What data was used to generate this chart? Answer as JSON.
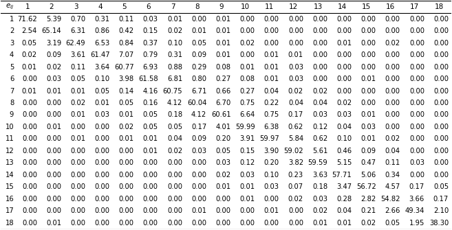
{
  "header_col": [
    "e_{ij}",
    "1",
    "2",
    "3",
    "4",
    "5",
    "6",
    "7",
    "8",
    "9",
    "10",
    "11",
    "12",
    "13",
    "14",
    "15",
    "16",
    "17",
    "18"
  ],
  "rows": [
    [
      "1",
      "71.62",
      "5.39",
      "0.70",
      "0.31",
      "0.11",
      "0.03",
      "0.01",
      "0.00",
      "0.01",
      "0.00",
      "0.00",
      "0.00",
      "0.00",
      "0.00",
      "0.00",
      "0.00",
      "0.00",
      "0.00"
    ],
    [
      "2",
      "2.54",
      "65.14",
      "6.31",
      "0.86",
      "0.42",
      "0.15",
      "0.02",
      "0.01",
      "0.01",
      "0.00",
      "0.00",
      "0.00",
      "0.00",
      "0.00",
      "0.00",
      "0.00",
      "0.00",
      "0.00"
    ],
    [
      "3",
      "0.05",
      "3.19",
      "62.49",
      "6.53",
      "0.84",
      "0.37",
      "0.10",
      "0.05",
      "0.01",
      "0.02",
      "0.00",
      "0.00",
      "0.00",
      "0.01",
      "0.00",
      "0.02",
      "0.00",
      "0.00"
    ],
    [
      "4",
      "0.02",
      "0.09",
      "3.61",
      "61.47",
      "7.07",
      "0.79",
      "0.31",
      "0.09",
      "0.01",
      "0.00",
      "0.01",
      "0.01",
      "0.00",
      "0.00",
      "0.00",
      "0.00",
      "0.00",
      "0.00"
    ],
    [
      "5",
      "0.01",
      "0.02",
      "0.11",
      "3.64",
      "60.77",
      "6.93",
      "0.88",
      "0.29",
      "0.08",
      "0.01",
      "0.01",
      "0.03",
      "0.00",
      "0.00",
      "0.00",
      "0.00",
      "0.00",
      "0.00"
    ],
    [
      "6",
      "0.00",
      "0.03",
      "0.05",
      "0.10",
      "3.98",
      "61.58",
      "6.81",
      "0.80",
      "0.27",
      "0.08",
      "0.01",
      "0.03",
      "0.00",
      "0.00",
      "0.01",
      "0.00",
      "0.00",
      "0.00"
    ],
    [
      "7",
      "0.01",
      "0.01",
      "0.01",
      "0.05",
      "0.14",
      "4.16",
      "60.75",
      "6.71",
      "0.66",
      "0.27",
      "0.04",
      "0.02",
      "0.02",
      "0.00",
      "0.00",
      "0.00",
      "0.00",
      "0.00"
    ],
    [
      "8",
      "0.00",
      "0.00",
      "0.02",
      "0.01",
      "0.05",
      "0.16",
      "4.12",
      "60.04",
      "6.70",
      "0.75",
      "0.22",
      "0.04",
      "0.04",
      "0.02",
      "0.00",
      "0.00",
      "0.00",
      "0.00"
    ],
    [
      "9",
      "0.00",
      "0.00",
      "0.01",
      "0.03",
      "0.01",
      "0.05",
      "0.18",
      "4.12",
      "60.61",
      "6.64",
      "0.75",
      "0.17",
      "0.03",
      "0.03",
      "0.01",
      "0.00",
      "0.00",
      "0.00"
    ],
    [
      "10",
      "0.00",
      "0.01",
      "0.00",
      "0.00",
      "0.02",
      "0.05",
      "0.05",
      "0.17",
      "4.01",
      "59.99",
      "6.38",
      "0.62",
      "0.12",
      "0.04",
      "0.03",
      "0.00",
      "0.00",
      "0.00"
    ],
    [
      "11",
      "0.00",
      "0.00",
      "0.01",
      "0.00",
      "0.01",
      "0.01",
      "0.04",
      "0.09",
      "0.20",
      "3.91",
      "59.97",
      "5.84",
      "0.62",
      "0.10",
      "0.01",
      "0.02",
      "0.00",
      "0.00"
    ],
    [
      "12",
      "0.00",
      "0.00",
      "0.00",
      "0.00",
      "0.00",
      "0.01",
      "0.02",
      "0.03",
      "0.05",
      "0.15",
      "3.90",
      "59.02",
      "5.61",
      "0.46",
      "0.09",
      "0.04",
      "0.00",
      "0.00"
    ],
    [
      "13",
      "0.00",
      "0.00",
      "0.00",
      "0.00",
      "0.00",
      "0.00",
      "0.00",
      "0.00",
      "0.03",
      "0.12",
      "0.20",
      "3.82",
      "59.59",
      "5.15",
      "0.47",
      "0.11",
      "0.03",
      "0.00"
    ],
    [
      "14",
      "0.00",
      "0.00",
      "0.00",
      "0.00",
      "0.00",
      "0.00",
      "0.00",
      "0.00",
      "0.02",
      "0.03",
      "0.10",
      "0.23",
      "3.63",
      "57.71",
      "5.06",
      "0.34",
      "0.00",
      "0.00"
    ],
    [
      "15",
      "0.00",
      "0.00",
      "0.00",
      "0.00",
      "0.00",
      "0.00",
      "0.00",
      "0.00",
      "0.01",
      "0.01",
      "0.03",
      "0.07",
      "0.18",
      "3.47",
      "56.72",
      "4.57",
      "0.17",
      "0.05"
    ],
    [
      "16",
      "0.00",
      "0.00",
      "0.00",
      "0.00",
      "0.00",
      "0.00",
      "0.00",
      "0.00",
      "0.00",
      "0.01",
      "0.00",
      "0.02",
      "0.03",
      "0.28",
      "2.82",
      "54.82",
      "3.66",
      "0.17"
    ],
    [
      "17",
      "0.00",
      "0.00",
      "0.00",
      "0.00",
      "0.00",
      "0.00",
      "0.00",
      "0.01",
      "0.00",
      "0.00",
      "0.01",
      "0.00",
      "0.02",
      "0.04",
      "0.21",
      "2.66",
      "49.34",
      "2.10"
    ],
    [
      "18",
      "0.00",
      "0.01",
      "0.00",
      "0.00",
      "0.00",
      "0.00",
      "0.00",
      "0.00",
      "0.00",
      "0.00",
      "0.00",
      "0.00",
      "0.01",
      "0.01",
      "0.02",
      "0.05",
      "1.95",
      "38.30"
    ]
  ],
  "col_labels": [
    "1",
    "2",
    "3",
    "4",
    "5",
    "6",
    "7",
    "8",
    "9",
    "10",
    "11",
    "12",
    "13",
    "14",
    "15",
    "16",
    "17",
    "18"
  ],
  "header_label": "e_{ij}",
  "bg_color": "#ffffff",
  "text_color": "#000000",
  "header_line_color": "#000000",
  "font_size": 7.2,
  "header_font_size": 7.5
}
